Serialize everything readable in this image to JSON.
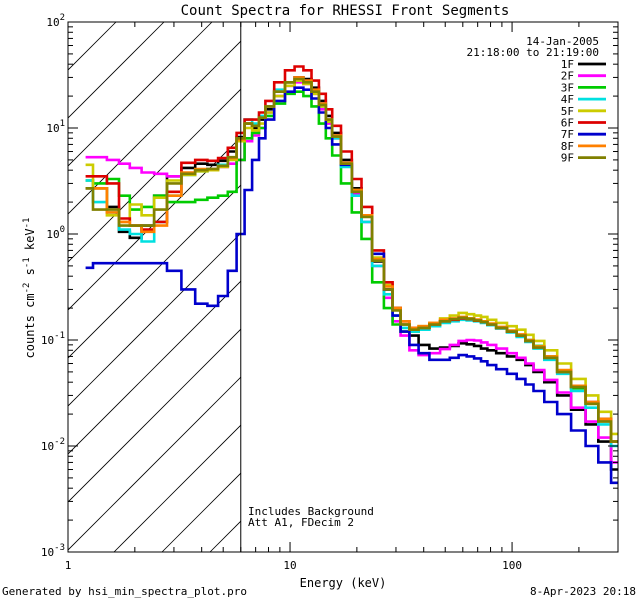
{
  "chart_data": {
    "type": "line",
    "title": "Count Spectra for RHESSI Front Segments",
    "xlabel": "Energy (keV)",
    "ylabel_parts": [
      "counts cm",
      "-2",
      " s",
      "-1",
      " keV",
      "-1"
    ],
    "xscale": "log",
    "yscale": "log",
    "xlim": [
      1,
      300
    ],
    "ylim": [
      0.001,
      100
    ],
    "x_ticks": [
      {
        "value": 1,
        "label": "1"
      },
      {
        "value": 10,
        "label": "10"
      },
      {
        "value": 100,
        "label": "100"
      }
    ],
    "y_ticks": [
      {
        "value": 0.001,
        "base": "10",
        "exp": "-3"
      },
      {
        "value": 0.01,
        "base": "10",
        "exp": "-2"
      },
      {
        "value": 0.1,
        "base": "10",
        "exp": "-1"
      },
      {
        "value": 1,
        "base": "10",
        "exp": "0"
      },
      {
        "value": 10,
        "base": "10",
        "exp": "1"
      },
      {
        "value": 100,
        "base": "10",
        "exp": "2"
      }
    ],
    "hatched_region_end": 6,
    "vertical_line_at": 6,
    "date": "14-Jan-2005",
    "time_range": "21:18:00 to 21:19:00",
    "annotations": [
      "Includes Background",
      "Att A1, FDecim 2"
    ],
    "legend_position": "top-right",
    "energies": [
      1.2,
      1.4,
      1.6,
      1.8,
      2.0,
      2.3,
      2.6,
      3.0,
      3.5,
      4.0,
      4.5,
      5.0,
      5.5,
      6.0,
      6.5,
      7.0,
      7.5,
      8.0,
      9.0,
      10,
      11,
      12,
      13,
      14,
      15,
      16,
      18,
      20,
      22,
      25,
      28,
      30,
      33,
      36,
      40,
      45,
      50,
      55,
      60,
      65,
      70,
      75,
      80,
      90,
      100,
      110,
      120,
      130,
      150,
      170,
      200,
      230,
      260,
      300
    ],
    "series": [
      {
        "name": "1F",
        "color": "#000000",
        "values": [
          2.7,
          2.7,
          1.8,
          1.05,
          0.92,
          1.2,
          2.3,
          3.5,
          4.2,
          4.6,
          4.5,
          4.9,
          6.0,
          8.2,
          11,
          10,
          12,
          15,
          22,
          27,
          30,
          29,
          24,
          18,
          13,
          9,
          5,
          2.7,
          1.5,
          0.55,
          0.3,
          0.2,
          0.14,
          0.11,
          0.09,
          0.083,
          0.085,
          0.088,
          0.093,
          0.091,
          0.088,
          0.083,
          0.08,
          0.075,
          0.07,
          0.065,
          0.058,
          0.05,
          0.04,
          0.03,
          0.022,
          0.016,
          0.011,
          0.006
        ]
      },
      {
        "name": "2F",
        "color": "#ff00ff",
        "values": [
          5.3,
          5.3,
          5.0,
          4.6,
          4.2,
          3.8,
          3.7,
          3.5,
          3.7,
          4.0,
          4.1,
          4.3,
          4.6,
          5.0,
          7.5,
          8.5,
          10,
          14,
          20,
          25,
          27,
          26,
          21,
          15,
          11,
          8,
          4.5,
          2.4,
          1.3,
          0.5,
          0.25,
          0.15,
          0.11,
          0.08,
          0.072,
          0.075,
          0.082,
          0.09,
          0.098,
          0.1,
          0.099,
          0.095,
          0.09,
          0.083,
          0.075,
          0.068,
          0.06,
          0.052,
          0.042,
          0.032,
          0.023,
          0.017,
          0.012,
          0.007
        ]
      },
      {
        "name": "3F",
        "color": "#00cc00",
        "values": [
          3.2,
          3.0,
          3.3,
          2.3,
          1.7,
          1.8,
          2.3,
          2.0,
          2.0,
          2.1,
          2.2,
          2.3,
          2.5,
          5.0,
          8.0,
          9,
          10,
          13,
          17,
          21,
          22,
          20,
          16,
          11,
          8,
          5.5,
          3,
          1.6,
          0.9,
          0.35,
          0.2,
          0.14,
          0.12,
          0.12,
          0.13,
          0.14,
          0.15,
          0.158,
          0.163,
          0.16,
          0.155,
          0.15,
          0.14,
          0.13,
          0.12,
          0.11,
          0.1,
          0.088,
          0.07,
          0.05,
          0.035,
          0.025,
          0.018,
          0.011
        ]
      },
      {
        "name": "4F",
        "color": "#00e0e0",
        "values": [
          3.2,
          2.0,
          1.6,
          1.1,
          1.0,
          0.85,
          1.3,
          2.3,
          3.6,
          3.9,
          4.1,
          4.5,
          5.2,
          8.0,
          12,
          11,
          13,
          16,
          23,
          27,
          28,
          27,
          22,
          16,
          11.5,
          8,
          4.3,
          2.3,
          1.3,
          0.5,
          0.27,
          0.17,
          0.13,
          0.12,
          0.125,
          0.135,
          0.145,
          0.15,
          0.155,
          0.153,
          0.15,
          0.145,
          0.138,
          0.128,
          0.118,
          0.107,
          0.096,
          0.083,
          0.065,
          0.048,
          0.033,
          0.023,
          0.016,
          0.01
        ]
      },
      {
        "name": "5F",
        "color": "#cccc00",
        "values": [
          4.5,
          2.7,
          1.5,
          1.3,
          1.9,
          1.5,
          2.2,
          3.2,
          3.6,
          3.9,
          4.0,
          4.3,
          5.0,
          7.5,
          10,
          9.5,
          11,
          14,
          20,
          25,
          28,
          26,
          21,
          16,
          11.5,
          8.3,
          4.7,
          2.6,
          1.5,
          0.6,
          0.33,
          0.2,
          0.14,
          0.13,
          0.135,
          0.145,
          0.16,
          0.17,
          0.18,
          0.175,
          0.17,
          0.165,
          0.155,
          0.145,
          0.135,
          0.125,
          0.112,
          0.098,
          0.08,
          0.06,
          0.043,
          0.03,
          0.021,
          0.013
        ]
      },
      {
        "name": "6F",
        "color": "#dd0000",
        "values": [
          3.5,
          3.5,
          3.0,
          1.4,
          1.2,
          1.1,
          1.3,
          2.5,
          4.7,
          5.0,
          4.9,
          5.2,
          6.5,
          9.0,
          12,
          12,
          14,
          18,
          27,
          35,
          38,
          35,
          28,
          21,
          15,
          10.5,
          6,
          3.3,
          1.8,
          0.7,
          0.35,
          0.2,
          0.15,
          0.13,
          0.13,
          0.14,
          0.15,
          0.155,
          0.16,
          0.157,
          0.152,
          0.148,
          0.14,
          0.13,
          0.12,
          0.11,
          0.098,
          0.085,
          0.068,
          0.05,
          0.036,
          0.026,
          0.018,
          0.011
        ]
      },
      {
        "name": "7F",
        "color": "#0000cc",
        "values": [
          0.48,
          0.53,
          0.53,
          0.53,
          0.53,
          0.53,
          0.53,
          0.45,
          0.3,
          0.22,
          0.21,
          0.26,
          0.45,
          1.0,
          2.6,
          5,
          8,
          12,
          18,
          22,
          24,
          23,
          19,
          14,
          10,
          7,
          4.5,
          2.5,
          1.5,
          0.65,
          0.3,
          0.17,
          0.12,
          0.09,
          0.075,
          0.065,
          0.065,
          0.068,
          0.072,
          0.07,
          0.067,
          0.063,
          0.058,
          0.053,
          0.048,
          0.043,
          0.038,
          0.033,
          0.026,
          0.02,
          0.014,
          0.01,
          0.007,
          0.0045
        ]
      },
      {
        "name": "8F",
        "color": "#ff8000",
        "values": [
          2.7,
          2.7,
          1.6,
          1.3,
          1.2,
          1.05,
          1.2,
          2.3,
          3.8,
          4.1,
          4.1,
          4.4,
          5.2,
          7.8,
          11,
          10.5,
          12.5,
          16,
          22,
          27,
          30,
          28,
          23,
          17,
          12,
          8.5,
          4.7,
          2.6,
          1.5,
          0.58,
          0.32,
          0.2,
          0.15,
          0.13,
          0.135,
          0.145,
          0.155,
          0.16,
          0.165,
          0.16,
          0.156,
          0.15,
          0.143,
          0.133,
          0.123,
          0.113,
          0.1,
          0.087,
          0.07,
          0.052,
          0.037,
          0.026,
          0.018,
          0.011
        ]
      },
      {
        "name": "9F",
        "color": "#808000",
        "values": [
          2.7,
          1.7,
          1.7,
          1.2,
          1.2,
          1.2,
          1.7,
          3.0,
          3.7,
          4.0,
          4.1,
          4.4,
          5.3,
          8.0,
          11,
          10.5,
          12.5,
          16,
          22,
          27,
          29,
          27,
          22,
          16.5,
          12,
          8.3,
          4.6,
          2.5,
          1.45,
          0.56,
          0.3,
          0.19,
          0.14,
          0.125,
          0.13,
          0.14,
          0.15,
          0.157,
          0.162,
          0.158,
          0.153,
          0.148,
          0.14,
          0.13,
          0.12,
          0.11,
          0.098,
          0.085,
          0.068,
          0.05,
          0.036,
          0.025,
          0.017,
          0.011
        ]
      }
    ]
  },
  "footer": {
    "generated_by": "Generated by hsi_min_spectra_plot.pro",
    "timestamp": "8-Apr-2023 20:18"
  }
}
